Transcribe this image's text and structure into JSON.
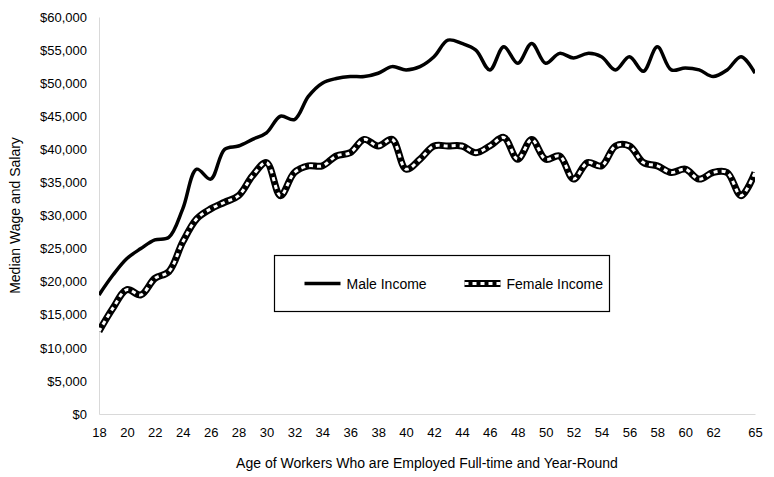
{
  "chart_data": {
    "type": "line",
    "x_label": "Age of Workers Who are Employed Full-time and Year-Round",
    "y_label": "Median Wage and Salary",
    "x": [
      18,
      19,
      20,
      21,
      22,
      23,
      24,
      25,
      26,
      27,
      28,
      29,
      30,
      31,
      32,
      33,
      34,
      35,
      36,
      37,
      38,
      39,
      40,
      41,
      42,
      43,
      44,
      45,
      46,
      47,
      48,
      49,
      50,
      51,
      52,
      53,
      54,
      55,
      56,
      57,
      58,
      59,
      60,
      61,
      62,
      63,
      64,
      65
    ],
    "series": [
      {
        "name": "Male Income",
        "color": "#000000",
        "line_style": "solid",
        "values": [
          18000,
          21000,
          23500,
          25000,
          26300,
          26700,
          31000,
          37000,
          35500,
          40000,
          40500,
          41500,
          42500,
          45000,
          44500,
          48000,
          50000,
          50700,
          51000,
          51000,
          51500,
          52500,
          52000,
          52500,
          54000,
          56500,
          56000,
          55000,
          52000,
          55500,
          53000,
          56000,
          53000,
          54500,
          53800,
          54500,
          54000,
          52000,
          54000,
          51800,
          55500,
          52000,
          52300,
          52000,
          51000,
          52000,
          54000,
          51500
        ]
      },
      {
        "name": "Female Income",
        "color": "#000000",
        "line_style": "dashed",
        "values": [
          12500,
          16000,
          18800,
          18000,
          20500,
          21500,
          26000,
          29500,
          31000,
          32000,
          33000,
          36000,
          38000,
          33000,
          36500,
          37500,
          37500,
          39000,
          39500,
          41500,
          40500,
          41500,
          37000,
          38500,
          40500,
          40500,
          40500,
          39500,
          40500,
          41800,
          38500,
          41500,
          38500,
          39000,
          35500,
          38000,
          37500,
          40500,
          40500,
          38000,
          37500,
          36500,
          37000,
          35500,
          36500,
          36500,
          33000,
          36500
        ]
      }
    ],
    "xlim": [
      18,
      65
    ],
    "xticks": [
      18,
      20,
      22,
      24,
      26,
      28,
      30,
      32,
      34,
      36,
      38,
      40,
      42,
      44,
      46,
      48,
      50,
      52,
      54,
      56,
      58,
      60,
      62,
      65
    ],
    "ylim": [
      0,
      60000
    ],
    "yticks": [
      {
        "value": 0,
        "label": "$0"
      },
      {
        "value": 5000,
        "label": "$5,000"
      },
      {
        "value": 10000,
        "label": "$10,000"
      },
      {
        "value": 15000,
        "label": "$15,000"
      },
      {
        "value": 20000,
        "label": "$20,000"
      },
      {
        "value": 25000,
        "label": "$25,000"
      },
      {
        "value": 30000,
        "label": "$30,000"
      },
      {
        "value": 35000,
        "label": "$35,000"
      },
      {
        "value": 40000,
        "label": "$40,000"
      },
      {
        "value": 45000,
        "label": "$45,000"
      },
      {
        "value": 50000,
        "label": "$50,000"
      },
      {
        "value": 55000,
        "label": "$55,000"
      },
      {
        "value": 60000,
        "label": "$60,000"
      }
    ],
    "grid": false,
    "legend": "center"
  }
}
